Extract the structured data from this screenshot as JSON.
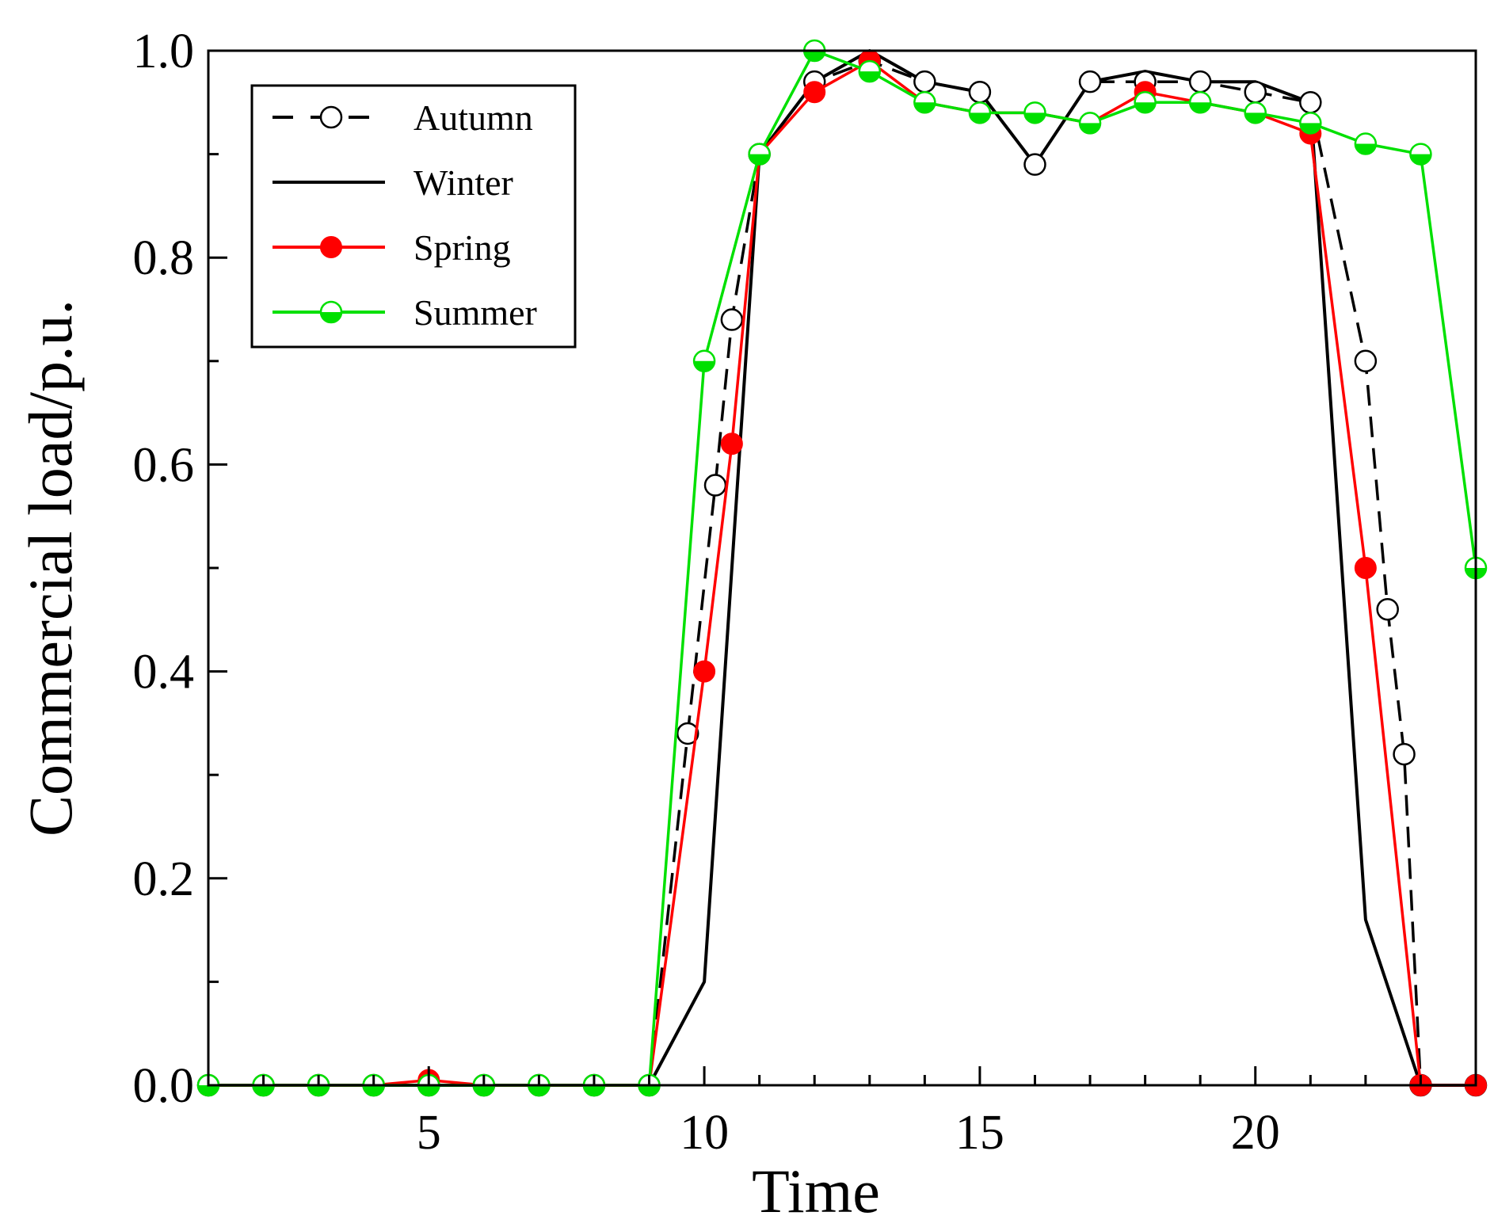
{
  "chart_data": {
    "type": "line",
    "title": "",
    "xlabel": "Time",
    "ylabel": "Commercial load/p.u.",
    "xlim": [
      1,
      24
    ],
    "ylim": [
      0,
      1.0
    ],
    "x_ticks": [
      5,
      10,
      15,
      20
    ],
    "x_tick_labels": [
      "5",
      "10",
      "15",
      "20"
    ],
    "y_ticks": [
      0,
      0.2,
      0.4,
      0.6,
      0.8,
      1.0
    ],
    "y_tick_labels": [
      "0.0",
      "0.2",
      "0.4",
      "0.6",
      "0.8",
      "1.0"
    ],
    "legend_position": "top-left",
    "series": [
      {
        "name": "Autumn",
        "color": "#000000",
        "line": "dashed",
        "marker": "open-circle",
        "x": [
          1,
          2,
          3,
          4,
          5,
          6,
          7,
          8,
          9,
          9.7,
          10.2,
          10.5,
          11,
          12,
          13,
          14,
          15,
          16,
          17,
          18,
          19,
          20,
          21,
          22,
          22.4,
          22.7,
          23,
          24
        ],
        "values": [
          0,
          0,
          0,
          0,
          0,
          0,
          0,
          0,
          0,
          0.34,
          0.58,
          0.74,
          0.9,
          0.97,
          0.99,
          0.97,
          0.96,
          0.89,
          0.97,
          0.97,
          0.97,
          0.96,
          0.95,
          0.7,
          0.46,
          0.32,
          0,
          0
        ]
      },
      {
        "name": "Winter",
        "color": "#000000",
        "line": "solid",
        "marker": "none",
        "x": [
          1,
          2,
          3,
          4,
          5,
          6,
          7,
          8,
          9,
          10,
          11,
          12,
          13,
          14,
          15,
          16,
          17,
          18,
          19,
          20,
          21,
          22,
          23,
          24
        ],
        "values": [
          0,
          0,
          0,
          0,
          0,
          0,
          0,
          0,
          0,
          0.1,
          0.9,
          0.97,
          1.0,
          0.97,
          0.96,
          0.89,
          0.97,
          0.98,
          0.97,
          0.97,
          0.95,
          0.16,
          0,
          0
        ]
      },
      {
        "name": "Spring",
        "color": "#ff0000",
        "line": "solid",
        "marker": "filled-circle",
        "x": [
          1,
          2,
          3,
          4,
          5,
          6,
          7,
          8,
          9,
          10,
          10.5,
          11,
          12,
          13,
          14,
          15,
          16,
          17,
          18,
          19,
          20,
          21,
          22,
          23,
          24
        ],
        "values": [
          0,
          0,
          0,
          0,
          0.005,
          0,
          0,
          0,
          0,
          0.4,
          0.62,
          0.9,
          0.96,
          0.99,
          0.95,
          0.94,
          0.94,
          0.93,
          0.96,
          0.95,
          0.94,
          0.92,
          0.5,
          0,
          0
        ]
      },
      {
        "name": "Summer",
        "color": "#00e000",
        "line": "solid",
        "marker": "half-circle",
        "x": [
          1,
          2,
          3,
          4,
          5,
          6,
          7,
          8,
          9,
          10,
          11,
          12,
          13,
          14,
          15,
          16,
          17,
          18,
          19,
          20,
          21,
          22,
          23,
          24
        ],
        "values": [
          0,
          0,
          0,
          0,
          0,
          0,
          0,
          0,
          0,
          0.7,
          0.9,
          1.0,
          0.98,
          0.95,
          0.94,
          0.94,
          0.93,
          0.95,
          0.95,
          0.94,
          0.93,
          0.91,
          0.9,
          0.5
        ]
      }
    ]
  }
}
